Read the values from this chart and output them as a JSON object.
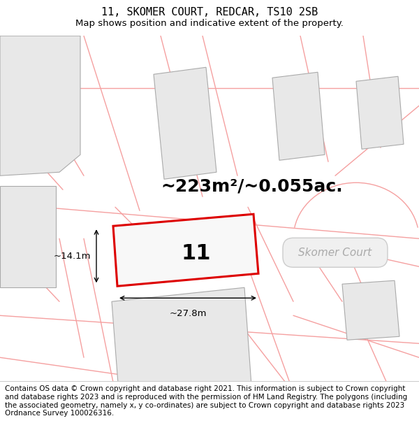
{
  "title": "11, SKOMER COURT, REDCAR, TS10 2SB",
  "subtitle": "Map shows position and indicative extent of the property.",
  "footer": "Contains OS data © Crown copyright and database right 2021. This information is subject to Crown copyright and database rights 2023 and is reproduced with the permission of HM Land Registry. The polygons (including the associated geometry, namely x, y co-ordinates) are subject to Crown copyright and database rights 2023 Ordnance Survey 100026316.",
  "map_bg": "#ffffff",
  "plot_fill": "#f0f0f0",
  "plot_border": "#e8494900",
  "neighbor_fill": "#e8e8e8",
  "neighbor_line": "#f0a0a0",
  "road_label": "Skomer Court",
  "plot_number": "11",
  "area_text": "~223m²/~0.055ac.",
  "dim_width": "~27.8m",
  "dim_height": "~14.1m",
  "title_fontsize": 11,
  "subtitle_fontsize": 9.5,
  "footer_fontsize": 7.5,
  "area_fontsize": 18,
  "plot_num_fontsize": 22,
  "road_fontsize": 11,
  "red_border": "#dd0000",
  "gray_border": "#aaaaaa",
  "line_color": "#f5a0a0"
}
